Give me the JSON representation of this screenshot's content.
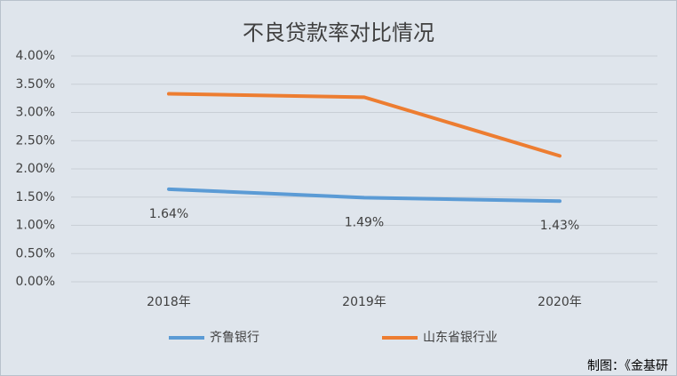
{
  "chart_data": {
    "type": "line",
    "title": "不良贷款率对比情况",
    "categories": [
      "2018年",
      "2019年",
      "2020年"
    ],
    "series": [
      {
        "name": "齐鲁银行",
        "color": "#5b9bd5",
        "values": [
          1.64,
          1.49,
          1.43
        ],
        "value_labels": [
          "1.64%",
          "1.49%",
          "1.43%"
        ]
      },
      {
        "name": "山东省银行业",
        "color": "#ed7d31",
        "values": [
          3.33,
          3.27,
          2.23
        ]
      }
    ],
    "ylim": [
      0,
      4
    ],
    "yticks": [
      {
        "value": 0,
        "label": "0.00%"
      },
      {
        "value": 0.5,
        "label": "0.50%"
      },
      {
        "value": 1,
        "label": "1.00%"
      },
      {
        "value": 1.5,
        "label": "1.50%"
      },
      {
        "value": 2,
        "label": "2.00%"
      },
      {
        "value": 2.5,
        "label": "2.50%"
      },
      {
        "value": 3,
        "label": "3.00%"
      },
      {
        "value": 3.5,
        "label": "3.50%"
      },
      {
        "value": 4,
        "label": "4.00%"
      }
    ],
    "grid": true,
    "legend": "bottom",
    "source": "制图：《金基研"
  }
}
